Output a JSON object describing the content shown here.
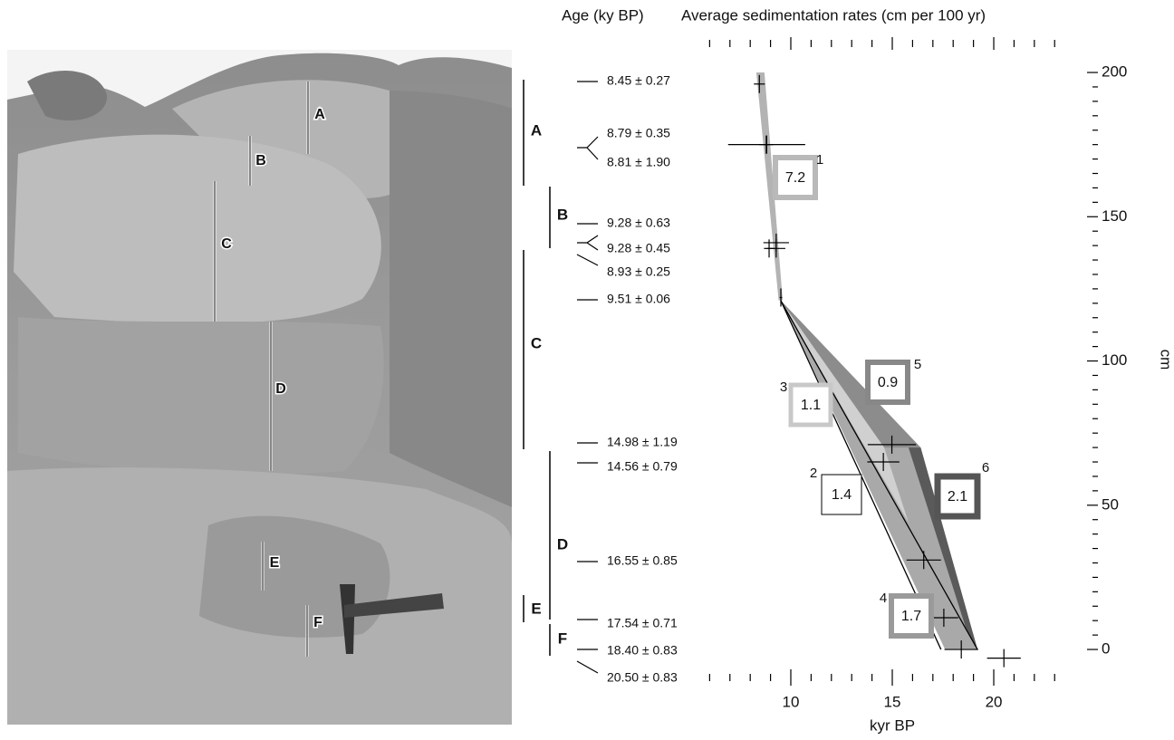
{
  "photo": {
    "labels": [
      "A",
      "B",
      "C",
      "D",
      "E",
      "F"
    ]
  },
  "chart_data": {
    "type": "sedimentation",
    "title": "Average sedimentation rates (cm per 100 yr)",
    "age_heading": "Age (ky BP)",
    "xlabel": "kyr BP",
    "ylabel": "cm",
    "xlim": [
      5.8,
      23.9
    ],
    "ylim": [
      -3,
      205
    ],
    "xticks": [
      10,
      15,
      20
    ],
    "xminor_ticks": [
      6,
      7,
      8,
      9,
      11,
      12,
      13,
      14,
      16,
      17,
      18,
      19,
      21,
      22,
      23
    ],
    "yticks": [
      0,
      50,
      100,
      150,
      200
    ],
    "yminor_ticks": [
      5,
      10,
      15,
      20,
      25,
      30,
      35,
      40,
      45,
      55,
      60,
      65,
      70,
      75,
      80,
      85,
      90,
      95,
      105,
      110,
      115,
      120,
      125,
      130,
      135,
      140,
      145,
      155,
      160,
      165,
      170,
      175,
      180,
      185,
      190,
      195
    ],
    "units": [
      "A",
      "B",
      "C",
      "D",
      "E",
      "F"
    ],
    "ages": [
      {
        "label": "8.45 ± 0.27",
        "age": 8.45,
        "err": 0.27,
        "depth": 196
      },
      {
        "label": "8.79 ± 0.35",
        "age": 8.79,
        "err": 0.35,
        "depth": 175
      },
      {
        "label": "8.81 ± 1.90",
        "age": 8.81,
        "err": 1.9,
        "depth": 175
      },
      {
        "label": "9.28 ± 0.63",
        "age": 9.28,
        "err": 0.63,
        "depth": 141
      },
      {
        "label": "9.28 ± 0.45",
        "age": 9.28,
        "err": 0.45,
        "depth": 139
      },
      {
        "label": "8.93 ± 0.25",
        "age": 8.93,
        "err": 0.25,
        "depth": 139
      },
      {
        "label": "9.51 ± 0.06",
        "age": 9.51,
        "err": 0.06,
        "depth": 122
      },
      {
        "label": "14.98 ± 1.19",
        "age": 14.98,
        "err": 1.19,
        "depth": 71
      },
      {
        "label": "14.56 ± 0.79",
        "age": 14.56,
        "err": 0.79,
        "depth": 65
      },
      {
        "label": "16.55 ± 0.85",
        "age": 16.55,
        "err": 0.85,
        "depth": 31
      },
      {
        "label": "17.54 ± 0.71",
        "age": 17.54,
        "err": 0.71,
        "depth": 11
      },
      {
        "label": "18.40 ± 0.83",
        "age": 18.4,
        "err": 0.83,
        "depth": 0
      },
      {
        "label": "20.50 ± 0.83",
        "age": 20.5,
        "err": 0.83,
        "depth": -3
      }
    ],
    "regions": [
      {
        "color": "#b3b3b3",
        "x": [
          8.3,
          8.7,
          9.6,
          9.4
        ],
        "y": [
          200,
          200,
          121,
          121
        ]
      },
      {
        "color": "#a9a9a9",
        "x": [
          9.5,
          16.4,
          19.2,
          17.6
        ],
        "y": [
          121,
          70,
          0,
          0
        ]
      },
      {
        "color": "#8c8c8c",
        "x": [
          9.5,
          16.4,
          14.6
        ],
        "y": [
          121,
          70,
          70
        ]
      },
      {
        "color": "#d0d0d0",
        "x": [
          9.5,
          14.6,
          15.8
        ],
        "y": [
          121,
          70,
          44
        ]
      },
      {
        "color": "#5a5a5a",
        "x": [
          15.8,
          16.4,
          19.2,
          18.6
        ],
        "y": [
          70,
          70,
          0,
          8
        ]
      }
    ],
    "lines": [
      {
        "color": "#000000",
        "x": [
          9.5,
          17.4
        ],
        "y": [
          121,
          0
        ]
      },
      {
        "color": "#000000",
        "x": [
          9.5,
          19.2
        ],
        "y": [
          121,
          0
        ]
      }
    ],
    "rates": [
      {
        "id": 1,
        "value": 7.2,
        "color": "#b9b9b9"
      },
      {
        "id": 2,
        "value": 1.4,
        "color": "#000000"
      },
      {
        "id": 3,
        "value": 1.1,
        "color": "#c8c8c8"
      },
      {
        "id": 4,
        "value": 1.7,
        "color": "#9a9a9a"
      },
      {
        "id": 5,
        "value": 0.9,
        "color": "#888888"
      },
      {
        "id": 6,
        "value": 2.1,
        "color": "#555555"
      }
    ]
  }
}
